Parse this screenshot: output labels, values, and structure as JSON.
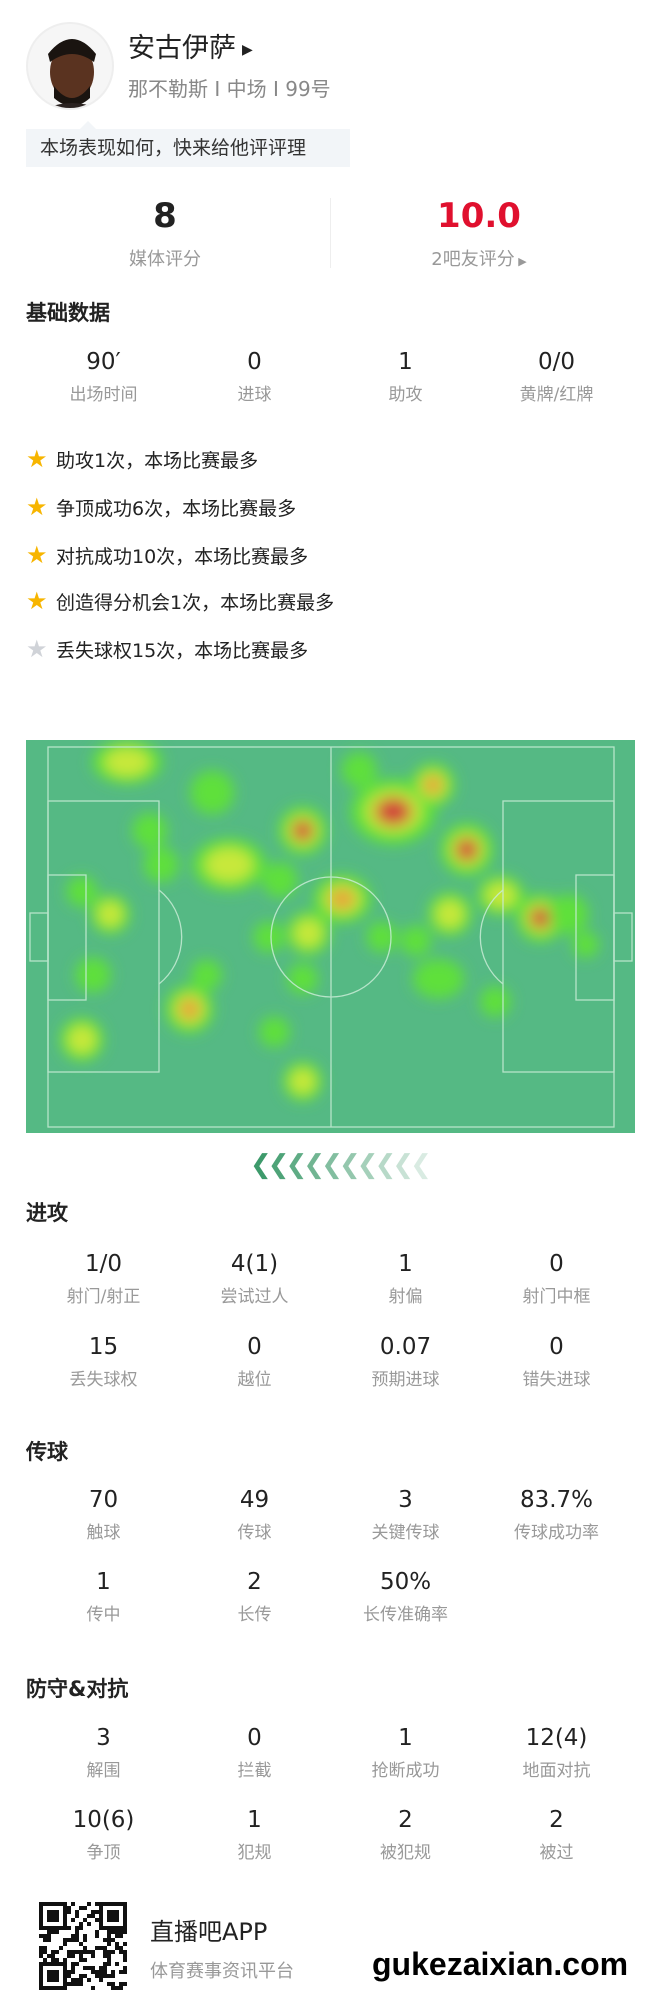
{
  "player": {
    "name": "安古伊萨",
    "info": "那不勒斯 I 中场 I 99号",
    "hint": "本场表现如何，快来给他评评理"
  },
  "ratings": [
    {
      "value": "8",
      "label": "媒体评分",
      "color": "#222222"
    },
    {
      "value": "10.0",
      "label": "2吧友评分",
      "color": "#e0102e"
    }
  ],
  "basic": {
    "title": "基础数据",
    "stats": [
      {
        "v": "90′",
        "l": "出场时间"
      },
      {
        "v": "0",
        "l": "进球"
      },
      {
        "v": "1",
        "l": "助攻"
      },
      {
        "v": "0/0",
        "l": "黄牌/红牌"
      }
    ]
  },
  "highlights": [
    {
      "text": "助攻1次，本场比赛最多",
      "icon": "star-gold"
    },
    {
      "text": "争顶成功6次，本场比赛最多",
      "icon": "star-gold"
    },
    {
      "text": "对抗成功10次，本场比赛最多",
      "icon": "star-gold"
    },
    {
      "text": "创造得分机会1次，本场比赛最多",
      "icon": "star-gold"
    },
    {
      "text": "丢失球权15次，本场比赛最多",
      "icon": "star-gray"
    }
  ],
  "attack": {
    "title": "进攻",
    "rows": [
      [
        {
          "v": "1/0",
          "l": "射门/射正"
        },
        {
          "v": "4(1)",
          "l": "尝试过人"
        },
        {
          "v": "1",
          "l": "射偏"
        },
        {
          "v": "0",
          "l": "射门中框"
        }
      ],
      [
        {
          "v": "15",
          "l": "丢失球权"
        },
        {
          "v": "0",
          "l": "越位"
        },
        {
          "v": "0.07",
          "l": "预期进球"
        },
        {
          "v": "0",
          "l": "错失进球"
        }
      ]
    ]
  },
  "passing": {
    "title": "传球",
    "rows": [
      [
        {
          "v": "70",
          "l": "触球"
        },
        {
          "v": "49",
          "l": "传球"
        },
        {
          "v": "3",
          "l": "关键传球"
        },
        {
          "v": "83.7%",
          "l": "传球成功率"
        }
      ],
      [
        {
          "v": "1",
          "l": "传中"
        },
        {
          "v": "2",
          "l": "长传"
        },
        {
          "v": "50%",
          "l": "长传准确率"
        }
      ]
    ]
  },
  "defense": {
    "title": "防守&对抗",
    "rows": [
      [
        {
          "v": "3",
          "l": "解围"
        },
        {
          "v": "0",
          "l": "拦截"
        },
        {
          "v": "1",
          "l": "抢断成功"
        },
        {
          "v": "12(4)",
          "l": "地面对抗"
        }
      ],
      [
        {
          "v": "10(6)",
          "l": "争顶"
        },
        {
          "v": "1",
          "l": "犯规"
        },
        {
          "v": "2",
          "l": "被犯规"
        },
        {
          "v": "2",
          "l": "被过"
        }
      ]
    ]
  },
  "footer": {
    "app": "直播吧APP",
    "sub": "体育赛事资讯平台",
    "watermark": "gukezaixian.com"
  },
  "colors": {
    "pitch": "#55b984",
    "accent_red": "#e0102e",
    "star": "#f7b500"
  }
}
